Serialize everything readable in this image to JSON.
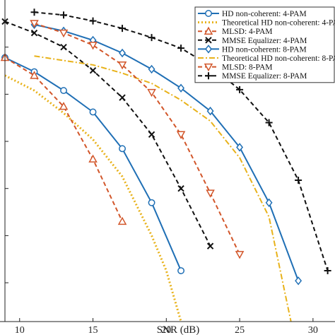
{
  "chart_data": {
    "type": "line",
    "xlabel": "SNR (dB)",
    "ylabel": "",
    "xlim": [
      9,
      31.5
    ],
    "ylog": true,
    "ylim": [
      1.5e-07,
      1
    ],
    "xticks": [
      10,
      15,
      20,
      25,
      30
    ],
    "grid": false,
    "legend_position": "top-right",
    "series": [
      {
        "name": "HD non-coherent: 4-PAM",
        "color": "#1f6fb5",
        "dash": "solid",
        "marker": "circle",
        "x": [
          9,
          11,
          13,
          15,
          17,
          19,
          21
        ],
        "y": [
          0.06,
          0.03,
          0.012,
          0.0042,
          0.0007,
          5e-05,
          1.8e-06
        ]
      },
      {
        "name": "Theoretical HD non-coherent: 4-PAM",
        "color": "#e8b21a",
        "dash": "dotted",
        "marker": "none",
        "x": [
          9,
          11,
          13,
          15,
          17,
          19,
          20,
          21
        ],
        "y": [
          0.025,
          0.012,
          0.004,
          0.0011,
          0.00018,
          1e-05,
          1.8e-06,
          1.5e-07
        ]
      },
      {
        "name": "MLSD: 4-PAM",
        "color": "#d2562a",
        "dash": "dashed",
        "marker": "triangle-up",
        "x": [
          9,
          11,
          13,
          15,
          17
        ],
        "y": [
          0.06,
          0.025,
          0.0055,
          0.00042,
          2e-05
        ]
      },
      {
        "name": "MMSE Equalizer: 4-PAM",
        "color": "#111111",
        "dash": "dashed",
        "marker": "x",
        "x": [
          9,
          11,
          13,
          15,
          17,
          19,
          21,
          23
        ],
        "y": [
          0.35,
          0.2,
          0.1,
          0.032,
          0.0085,
          0.0014,
          0.0001,
          6e-06
        ]
      },
      {
        "name": "HD non-coherent: 8-PAM",
        "color": "#1f6fb5",
        "dash": "solid",
        "marker": "diamond",
        "x": [
          11,
          13,
          15,
          17,
          19,
          21,
          23,
          25,
          27,
          29
        ],
        "y": [
          0.3,
          0.22,
          0.14,
          0.075,
          0.034,
          0.0135,
          0.0044,
          0.00075,
          5e-05,
          1.1e-06
        ]
      },
      {
        "name": "Theoretical HD non-coherent: 8-PAM",
        "color": "#e8b21a",
        "dash": "dashdot",
        "marker": "none",
        "x": [
          11,
          13,
          15,
          17,
          19,
          21,
          23,
          25,
          27,
          28.5
        ],
        "y": [
          0.065,
          0.052,
          0.042,
          0.028,
          0.017,
          0.0075,
          0.0027,
          0.00045,
          2.5e-05,
          1.5e-07
        ]
      },
      {
        "name": "MLSD: 8-PAM",
        "color": "#d2562a",
        "dash": "dashed",
        "marker": "triangle-down",
        "x": [
          11,
          13,
          15,
          17,
          19,
          21,
          23,
          25
        ],
        "y": [
          0.32,
          0.2,
          0.11,
          0.042,
          0.011,
          0.0014,
          8e-05,
          4e-06
        ]
      },
      {
        "name": "MMSE Equalizer: 8-PAM",
        "color": "#111111",
        "dash": "dashed",
        "marker": "plus",
        "x": [
          11,
          13,
          15,
          17,
          19,
          21,
          23,
          25,
          27,
          29,
          31
        ],
        "y": [
          0.55,
          0.48,
          0.36,
          0.25,
          0.16,
          0.095,
          0.04,
          0.0125,
          0.0025,
          0.00015,
          1.8e-06
        ]
      }
    ]
  }
}
